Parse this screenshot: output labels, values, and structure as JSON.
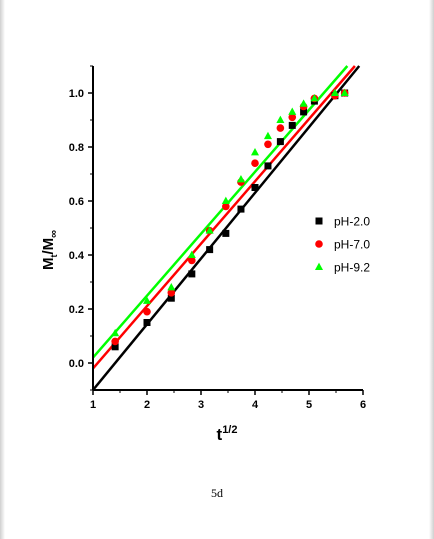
{
  "chart_data": {
    "type": "scatter",
    "xlabel_main": "t",
    "xlabel_sup": "1/2",
    "ylabel_main": "M",
    "ylabel_sub1": "t",
    "ylabel_mid": "/M",
    "ylabel_sub2": "∞",
    "xlim": [
      1,
      6
    ],
    "ylim": [
      -0.1,
      1.1
    ],
    "xticks": [
      "1",
      "2",
      "3",
      "4",
      "5",
      "6"
    ],
    "yticks": [
      "0.0",
      "0.2",
      "0.4",
      "0.6",
      "0.8",
      "1.0"
    ],
    "legend_position": "right",
    "series": [
      {
        "name": "pH-2.0",
        "marker": "square",
        "color": "#000000",
        "points": [
          [
            1.41,
            0.06
          ],
          [
            2.0,
            0.15
          ],
          [
            2.45,
            0.24
          ],
          [
            2.83,
            0.33
          ],
          [
            3.16,
            0.42
          ],
          [
            3.46,
            0.48
          ],
          [
            3.74,
            0.57
          ],
          [
            4.0,
            0.65
          ],
          [
            4.24,
            0.73
          ],
          [
            4.47,
            0.82
          ],
          [
            4.69,
            0.88
          ],
          [
            4.9,
            0.93
          ],
          [
            5.1,
            0.97
          ],
          [
            5.48,
            0.99
          ],
          [
            5.66,
            1.0
          ]
        ],
        "fit": [
          [
            1.0,
            -0.1
          ],
          [
            5.93,
            1.1
          ]
        ]
      },
      {
        "name": "pH-7.0",
        "marker": "circle",
        "color": "#ff0000",
        "points": [
          [
            1.41,
            0.08
          ],
          [
            2.0,
            0.19
          ],
          [
            2.45,
            0.26
          ],
          [
            2.83,
            0.38
          ],
          [
            3.16,
            0.49
          ],
          [
            3.46,
            0.58
          ],
          [
            3.74,
            0.67
          ],
          [
            4.0,
            0.74
          ],
          [
            4.24,
            0.81
          ],
          [
            4.47,
            0.87
          ],
          [
            4.69,
            0.91
          ],
          [
            4.9,
            0.95
          ],
          [
            5.1,
            0.98
          ],
          [
            5.48,
            0.99
          ],
          [
            5.66,
            1.0
          ]
        ],
        "fit": [
          [
            1.0,
            -0.02
          ],
          [
            5.85,
            1.1
          ]
        ]
      },
      {
        "name": "pH-9.2",
        "marker": "triangle",
        "color": "#00ff00",
        "points": [
          [
            1.41,
            0.11
          ],
          [
            2.0,
            0.23
          ],
          [
            2.45,
            0.28
          ],
          [
            2.83,
            0.4
          ],
          [
            3.16,
            0.49
          ],
          [
            3.46,
            0.6
          ],
          [
            3.74,
            0.68
          ],
          [
            4.0,
            0.78
          ],
          [
            4.24,
            0.84
          ],
          [
            4.47,
            0.9
          ],
          [
            4.69,
            0.93
          ],
          [
            4.9,
            0.96
          ],
          [
            5.1,
            0.98
          ],
          [
            5.48,
            1.0
          ],
          [
            5.66,
            1.0
          ]
        ],
        "fit": [
          [
            1.0,
            0.02
          ],
          [
            5.71,
            1.1
          ]
        ]
      }
    ]
  },
  "caption": "5d"
}
